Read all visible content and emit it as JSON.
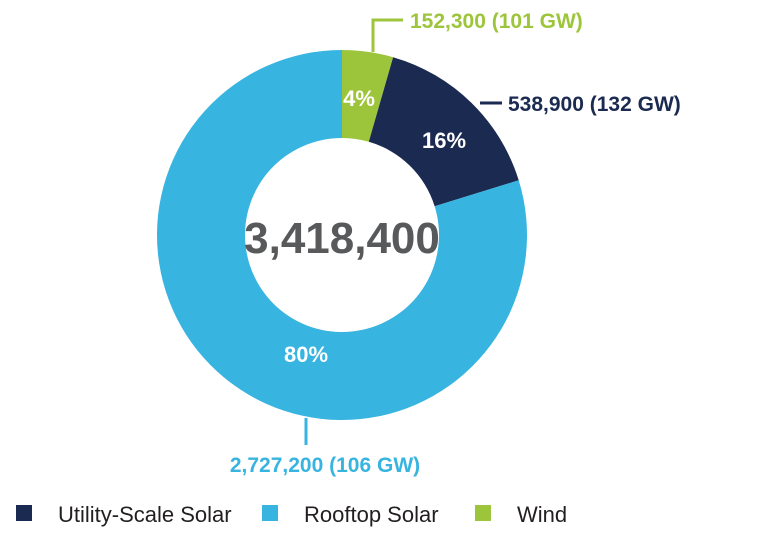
{
  "chart_data": {
    "type": "pie",
    "variant": "donut",
    "total": "3,418,400",
    "slices": [
      {
        "name": "Wind",
        "value": 152300,
        "percent_label": "4%",
        "callout": "152,300 (101 GW)",
        "color": "#9dc53b"
      },
      {
        "name": "Utility-Scale Solar",
        "value": 538900,
        "percent_label": "16%",
        "callout": "538,900 (132 GW)",
        "color": "#1b2a50"
      },
      {
        "name": "Rooftop Solar",
        "value": 2727200,
        "percent_label": "80%",
        "callout": "2,727,200 (106 GW)",
        "color": "#37b4e0"
      }
    ],
    "legend": [
      {
        "label": "Utility-Scale Solar",
        "color": "#1b2a50"
      },
      {
        "label": "Rooftop Solar",
        "color": "#37b4e0"
      },
      {
        "label": "Wind",
        "color": "#9dc53b"
      }
    ],
    "legend_position": "bottom-left"
  }
}
